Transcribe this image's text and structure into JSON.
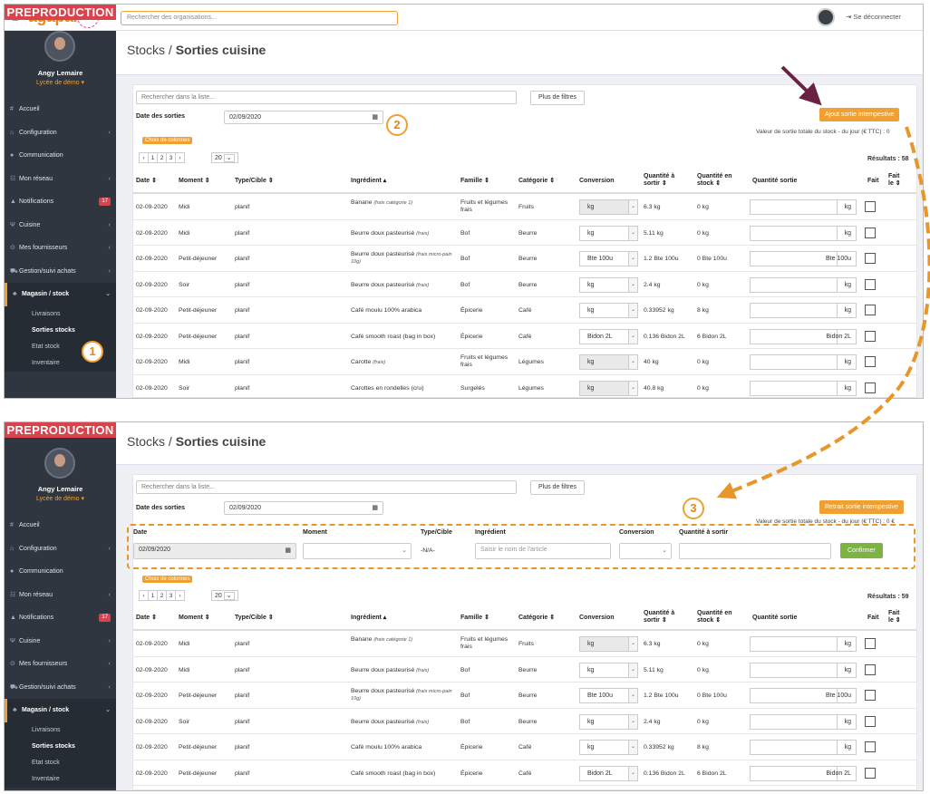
{
  "topbar": {
    "search_placeholder": "Rechercher des organisations...",
    "logo": "agapai",
    "logout": "Se déconnecter"
  },
  "sidebar": {
    "env": "PREPRODUCTION",
    "user": "Angy Lemaire",
    "school": "Lycée de démo ▾",
    "items": [
      {
        "icon": "#",
        "label": "Accueil"
      },
      {
        "icon": "⌂",
        "label": "Configuration",
        "caret": "‹"
      },
      {
        "icon": "●",
        "label": "Communication"
      },
      {
        "icon": "☷",
        "label": "Mon réseau",
        "caret": "‹"
      },
      {
        "icon": "▲",
        "label": "Notifications",
        "badge": "17"
      },
      {
        "icon": "Ψ",
        "label": "Cuisine",
        "caret": "‹"
      },
      {
        "icon": "⊙",
        "label": "Mes fournisseurs",
        "caret": "‹"
      },
      {
        "icon": "⛟",
        "label": "Gestion/suivi achats",
        "caret": "‹"
      },
      {
        "icon": "♣",
        "label": "Magasin / stock",
        "caret": "⌄"
      }
    ],
    "subitems": [
      "Livraisons",
      "Sorties stocks",
      "Etat stock",
      "Inventaire"
    ]
  },
  "page": {
    "breadcrumb": "Stocks / ",
    "title": "Sorties cuisine"
  },
  "filters": {
    "search_placeholder": "Rechercher dans la liste...",
    "more_filters": "Plus de filtres",
    "date_label": "Date des sorties",
    "date_value": "02/09/2020",
    "columns_button": "Choix de colonnes",
    "pager": [
      "‹",
      "1",
      "2",
      "3",
      "›"
    ],
    "page_size": "20"
  },
  "screen1": {
    "action_button": "Ajout sortie intempestive",
    "total_note": "Valeur de sortie totale du stock - du jour (€ TTC) : 0",
    "results": "Résultats : 58"
  },
  "screen2": {
    "action_button": "Retrait sortie intempestive",
    "total_note": "Valeur de sortie totale du stock - du jour (€ TTC) : 0 €",
    "results": "Résultats : 59",
    "form": {
      "labels": {
        "date": "Date",
        "moment": "Moment",
        "type": "Type/Cible",
        "ingredient": "Ingrédient",
        "conversion": "Conversion",
        "qty": "Quantité à sortir"
      },
      "date_value": "02/09/2020",
      "type_value": "-N/A-",
      "ingredient_placeholder": "Saisir le nom de l'article",
      "confirm": "Confirmer"
    }
  },
  "table": {
    "headers": {
      "date": "Date ⇕",
      "moment": "Moment ⇕",
      "type": "Type/Cible ⇕",
      "ingredient": "Ingrédient ▴",
      "famille": "Famille ⇕",
      "categorie": "Catégorie ⇕",
      "conversion": "Conversion",
      "qty_out": "Quantité à sortir ⇕",
      "qty_stock": "Quantité en stock ⇕",
      "qty_sortie": "Quantité sortie",
      "fait": "Fait",
      "fait_le": "Fait le ⇕"
    },
    "rows": [
      {
        "date": "02-09-2020",
        "moment": "Midi",
        "type": "planif",
        "ing": "Banane",
        "ing_note": "(frais catégorie 1)",
        "fam": "Fruits et légumes frais",
        "cat": "Fruits",
        "conv": "kg",
        "conv_dis": true,
        "out": "6.3 kg",
        "stock": "0 kg",
        "unit": "kg"
      },
      {
        "date": "02-09-2020",
        "moment": "Midi",
        "type": "planif",
        "ing": "Beurre doux pasteurisé",
        "ing_note": "(frais)",
        "fam": "Bof",
        "cat": "Beurre",
        "conv": "kg",
        "conv_dis": false,
        "out": "5.11 kg",
        "stock": "0 kg",
        "unit": "kg"
      },
      {
        "date": "02-09-2020",
        "moment": "Petit-déjeuner",
        "type": "planif",
        "ing": "Beurre doux pasteurisé",
        "ing_note": "(frais micro-pain 10g)",
        "fam": "Bof",
        "cat": "Beurre",
        "conv": "Bte 100u",
        "conv_dis": false,
        "out": "1.2 Bte 100u",
        "stock": "0 Bte 100u",
        "unit": "Bte 100u"
      },
      {
        "date": "02-09-2020",
        "moment": "Soir",
        "type": "planif",
        "ing": "Beurre doux pasteurisé",
        "ing_note": "(frais)",
        "fam": "Bof",
        "cat": "Beurre",
        "conv": "kg",
        "conv_dis": false,
        "out": "2.4 kg",
        "stock": "0 kg",
        "unit": "kg"
      },
      {
        "date": "02-09-2020",
        "moment": "Petit-déjeuner",
        "type": "planif",
        "ing": "Café moulu 100% arabica",
        "ing_note": "",
        "fam": "Épicerie",
        "cat": "Café",
        "conv": "kg",
        "conv_dis": false,
        "out": "0.33952 kg",
        "stock": "8 kg",
        "unit": "kg"
      },
      {
        "date": "02-09-2020",
        "moment": "Petit-déjeuner",
        "type": "planif",
        "ing": "Café smooth roast (bag in box)",
        "ing_note": "",
        "fam": "Épicerie",
        "cat": "Café",
        "conv": "Bidon 2L",
        "conv_dis": false,
        "out": "0.136 Bidon 2L",
        "stock": "6 Bidon 2L",
        "unit": "Bidon 2L"
      },
      {
        "date": "02-09-2020",
        "moment": "Midi",
        "type": "planif",
        "ing": "Carotte",
        "ing_note": "(frais)",
        "fam": "Fruits et légumes frais",
        "cat": "Légumes",
        "conv": "kg",
        "conv_dis": true,
        "out": "40 kg",
        "stock": "0 kg",
        "unit": "kg"
      },
      {
        "date": "02-09-2020",
        "moment": "Soir",
        "type": "planif",
        "ing": "Carottes en rondelles (cru)",
        "ing_note": "",
        "fam": "Surgelés",
        "cat": "Légumes",
        "conv": "kg",
        "conv_dis": true,
        "out": "40.8 kg",
        "stock": "0 kg",
        "unit": "kg"
      }
    ]
  },
  "steps": [
    "1",
    "2",
    "3"
  ],
  "colors": {
    "accent": "#f0a030",
    "danger": "#d9434e",
    "sidebar": "#2f3640",
    "confirm": "#7cb342",
    "arrow": "#6b2142"
  }
}
